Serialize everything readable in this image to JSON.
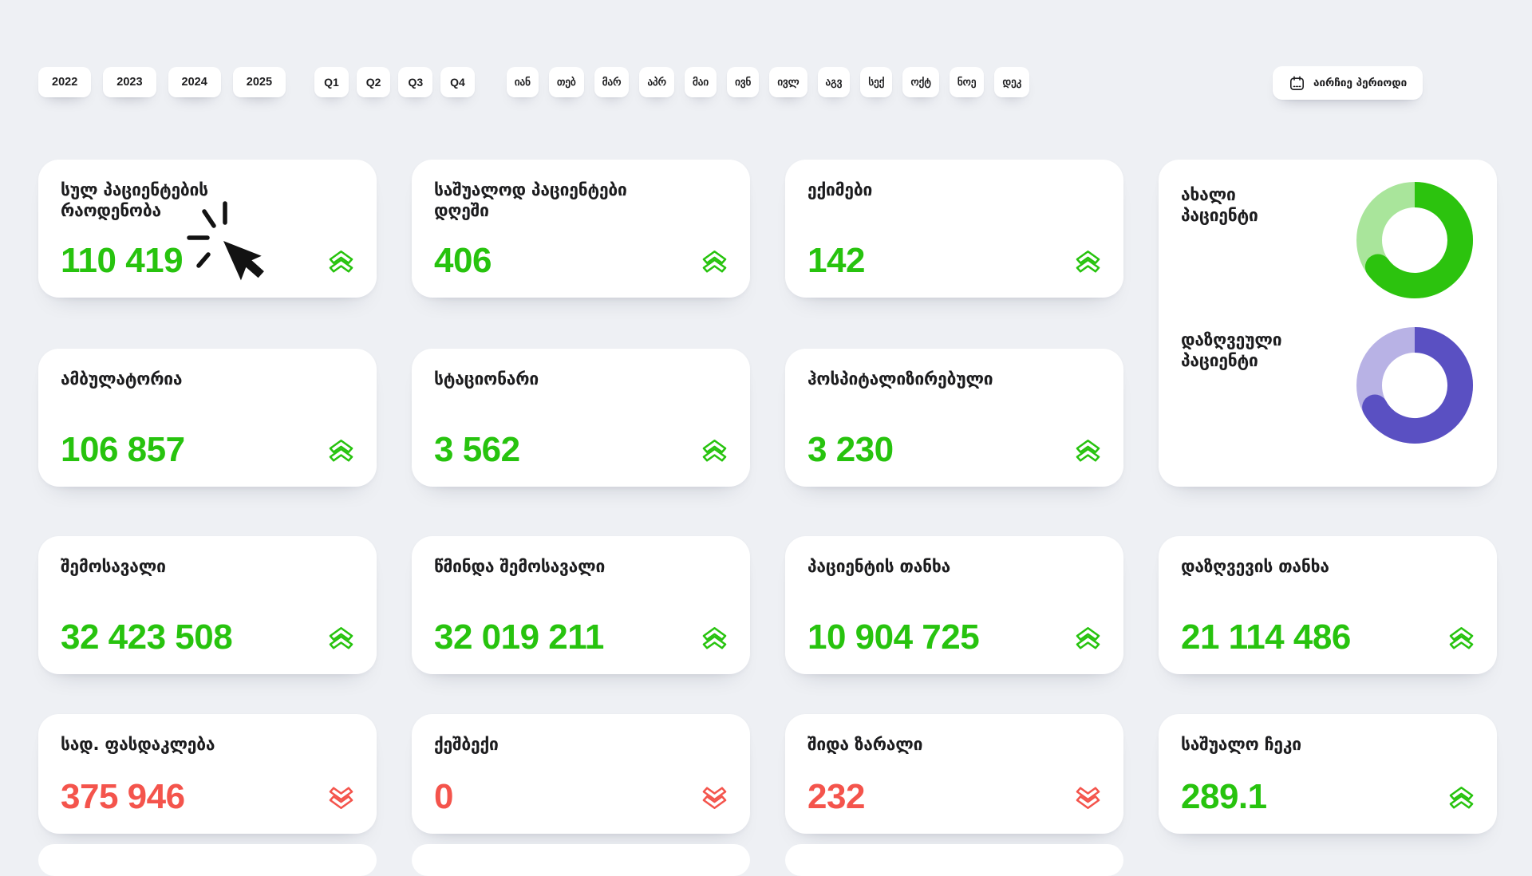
{
  "filters": {
    "years": [
      "2022",
      "2023",
      "2024",
      "2025"
    ],
    "quarters": [
      "Q1",
      "Q2",
      "Q3",
      "Q4"
    ],
    "months": [
      "იან",
      "თებ",
      "მარ",
      "აპრ",
      "მაი",
      "ივნ",
      "ივლ",
      "აგვ",
      "სექ",
      "ოქტ",
      "ნოე",
      "დეკ"
    ],
    "period_button_label": "აირჩიე პერიოდი"
  },
  "cards": [
    {
      "label": "სულ პაციენტების\nრაოდენობა",
      "value": "110 419",
      "trend": "up"
    },
    {
      "label": "საშუალოდ პაციენტები\nდღეში",
      "value": "406",
      "trend": "up"
    },
    {
      "label": "ექიმები",
      "value": "142",
      "trend": "up"
    },
    {
      "label": "ამბულატორია",
      "value": "106 857",
      "trend": "up"
    },
    {
      "label": "სტაციონარი",
      "value": "3 562",
      "trend": "up"
    },
    {
      "label": "ჰოსპიტალიზირებული",
      "value": "3 230",
      "trend": "up"
    },
    {
      "label": "შემოსავალი",
      "value": "32 423 508",
      "trend": "up"
    },
    {
      "label": "წმინდა შემოსავალი",
      "value": "32 019 211",
      "trend": "up"
    },
    {
      "label": "პაციენტის თანხა",
      "value": "10 904 725",
      "trend": "up"
    },
    {
      "label": "დაზღვევის თანხა",
      "value": "21 114 486",
      "trend": "up"
    },
    {
      "label": "სად. ფასდაკლება",
      "value": "375 946",
      "trend": "down"
    },
    {
      "label": "ქეშბექი",
      "value": "0",
      "trend": "down"
    },
    {
      "label": "შიდა ზარალი",
      "value": "232",
      "trend": "down"
    },
    {
      "label": "საშუალო ჩეკი",
      "value": "289.1",
      "trend": "up"
    }
  ],
  "donut_card": {
    "labels": [
      "ახალი\nპაციენტი",
      "დაზღვეული\nპაციენტი"
    ]
  },
  "chart_data": [
    {
      "type": "pie",
      "donut": true,
      "title": "ახალი პაციენტი",
      "segments": [
        {
          "name": "primary",
          "value": 65
        },
        {
          "name": "secondary",
          "value": 35
        }
      ],
      "colors": [
        "#2cc30e",
        "#a9e59b"
      ],
      "legend_position": "left-label-only"
    },
    {
      "type": "pie",
      "donut": true,
      "title": "დაზღვეული პაციენტი",
      "segments": [
        {
          "name": "primary",
          "value": 67
        },
        {
          "name": "secondary",
          "value": 33
        }
      ],
      "colors": [
        "#5a50c2",
        "#b8b2e5"
      ],
      "legend_position": "left-label-only"
    }
  ],
  "colors": {
    "background": "#eef0f4",
    "positive": "#27c30e",
    "negative": "#f4544c",
    "donut_green_dark": "#2cc30e",
    "donut_green_light": "#a9e59b",
    "donut_purple_dark": "#5a50c2",
    "donut_purple_light": "#b8b2e5"
  }
}
